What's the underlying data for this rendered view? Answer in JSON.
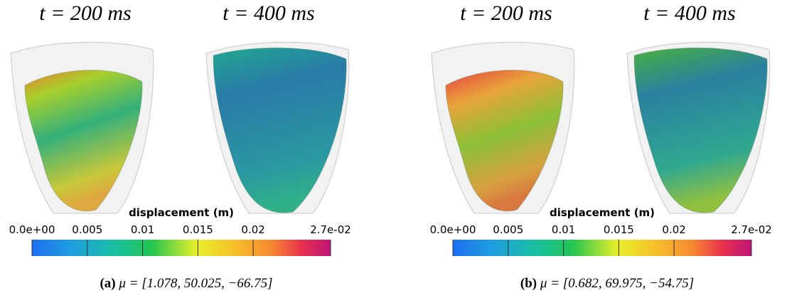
{
  "panels": [
    {
      "time_labels": [
        "t = 200 ms",
        "t = 400 ms"
      ],
      "colorbar": {
        "title": "displacement (m)",
        "range": [
          0,
          0.027
        ],
        "ticks": [
          {
            "value": 0,
            "label": "0.0e+00"
          },
          0.005,
          0.01,
          0.015,
          0.02,
          {
            "value": 0.027,
            "label": "2.7e-02"
          }
        ]
      },
      "caption": {
        "label": "(a)",
        "text": "μ = [1.078, 50.025, −66.75]"
      }
    },
    {
      "time_labels": [
        "t = 200 ms",
        "t = 400 ms"
      ],
      "colorbar": {
        "title": "displacement (m)",
        "range": [
          0,
          0.027
        ],
        "ticks": [
          {
            "value": 0,
            "label": "0.0e+00"
          },
          0.005,
          0.01,
          0.015,
          0.02,
          {
            "value": 0.027,
            "label": "2.7e-02"
          }
        ]
      },
      "caption": {
        "label": "(b)",
        "text": "μ = [0.682, 69.975, −54.75]"
      }
    }
  ]
}
